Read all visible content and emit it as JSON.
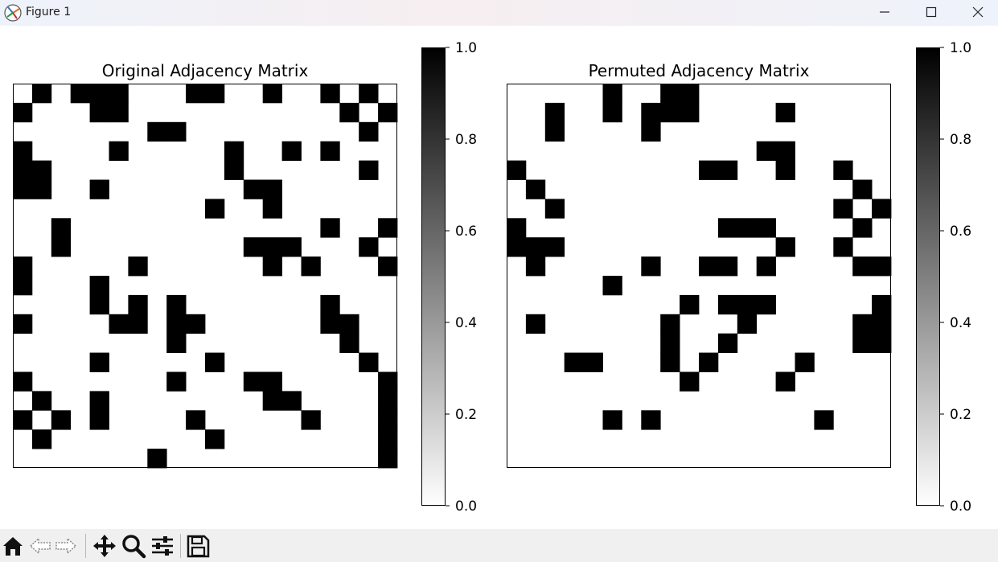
{
  "window": {
    "title": "Figure 1"
  },
  "toolbar": {
    "buttons": [
      "home-icon",
      "back-icon",
      "forward-icon",
      "pan-icon",
      "zoom-icon",
      "configure-subplots-icon",
      "save-icon"
    ]
  },
  "charts": [
    {
      "type": "heatmap",
      "title": "Original Adjacency Matrix",
      "matrix": [
        "01011100011001001010",
        "10001100000000000101",
        "00000001100000000010",
        "10000100000100101000",
        "11000000000100000010",
        "11001000000011000000",
        "00000000001001000000",
        "00100000000000001001",
        "00100000000011100010",
        "10000010000001010001",
        "10001000000000000000",
        "00001010100000001000",
        "10000110110000001100",
        "00000000100000000100",
        "00001000001000000010",
        "10000000100011000001",
        "01001000000001100001",
        "10101000010000010001",
        "01000000001000000001",
        "00000001000000000001"
      ],
      "colorbar": {
        "ticks": [
          "0.0",
          "0.2",
          "0.4",
          "0.6",
          "0.8",
          "1.0"
        ],
        "min": 0.0,
        "max": 1.0
      },
      "colormap": "gray_r"
    },
    {
      "type": "heatmap",
      "title": "Permuted Adjacency Matrix",
      "matrix": [
        "00000100110000000000",
        "00100101110000100000",
        "00100001000000000000",
        "00000000000001100000",
        "10000000001100100100",
        "01000000000000000010",
        "00100000000000000101",
        "10000000000111000010",
        "11100000000000100100",
        "01000001001101000011",
        "00000100000000000000",
        "00000000010111000001",
        "01000000100010000011",
        "00000000100100000011",
        "00011000101000010000",
        "00000000010000100000",
        "00000000000000000000",
        "00000101000000001000",
        "00000000000000000000",
        "00000000000000000000"
      ],
      "colorbar": {
        "ticks": [
          "0.0",
          "0.2",
          "0.4",
          "0.6",
          "0.8",
          "1.0"
        ],
        "min": 0.0,
        "max": 1.0
      },
      "colormap": "gray_r"
    }
  ],
  "chart_data": [
    {
      "type": "heatmap",
      "title": "Original Adjacency Matrix",
      "rows": 20,
      "cols": 20,
      "values": "see charts[0].matrix",
      "colorbar_range": [
        0.0,
        1.0
      ],
      "colorbar_ticks": [
        0.0,
        0.2,
        0.4,
        0.6,
        0.8,
        1.0
      ]
    },
    {
      "type": "heatmap",
      "title": "Permuted Adjacency Matrix",
      "rows": 20,
      "cols": 20,
      "values": "see charts[1].matrix",
      "colorbar_range": [
        0.0,
        1.0
      ],
      "colorbar_ticks": [
        0.0,
        0.2,
        0.4,
        0.6,
        0.8,
        1.0
      ]
    }
  ]
}
